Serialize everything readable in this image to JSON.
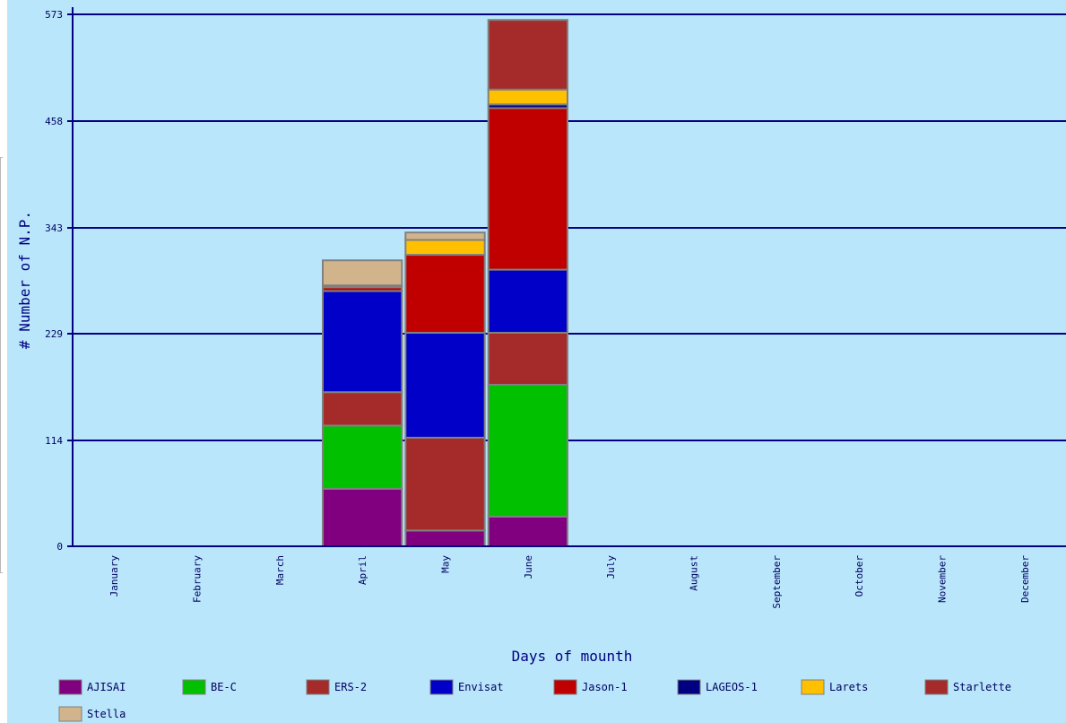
{
  "chart_data": {
    "type": "bar",
    "stacked": true,
    "xlabel": "Days of mounth",
    "ylabel": "# Number of N.P.",
    "ylim": [
      0,
      573
    ],
    "yticks": [
      "0",
      "114",
      "229",
      "343",
      "458",
      "573"
    ],
    "grid": true,
    "legend_position": "bottom",
    "categories": [
      "January",
      "February",
      "March",
      "April",
      "May",
      "June",
      "July",
      "August",
      "September",
      "October",
      "November",
      "December"
    ],
    "series": [
      {
        "name": "AJISAI",
        "color": "#800080",
        "values": [
          0,
          0,
          0,
          62,
          17,
          32,
          0,
          0,
          0,
          0,
          0,
          0
        ]
      },
      {
        "name": "BE-C",
        "color": "#00c000",
        "values": [
          0,
          0,
          0,
          68,
          0,
          142,
          0,
          0,
          0,
          0,
          0,
          0
        ]
      },
      {
        "name": "ERS-2",
        "color": "#a52a2a",
        "values": [
          0,
          0,
          0,
          36,
          100,
          56,
          0,
          0,
          0,
          0,
          0,
          0
        ]
      },
      {
        "name": "Envisat",
        "color": "#0000c8",
        "values": [
          0,
          0,
          0,
          109,
          113,
          68,
          0,
          0,
          0,
          0,
          0,
          0
        ]
      },
      {
        "name": "Jason-1",
        "color": "#c00000",
        "values": [
          0,
          0,
          0,
          4,
          84,
          174,
          0,
          0,
          0,
          0,
          0,
          0
        ]
      },
      {
        "name": "LAGEOS-1",
        "color": "#000080",
        "values": [
          0,
          0,
          0,
          0,
          0,
          4,
          0,
          0,
          0,
          0,
          0,
          0
        ]
      },
      {
        "name": "Larets",
        "color": "#ffc000",
        "values": [
          0,
          0,
          0,
          0,
          16,
          16,
          0,
          0,
          0,
          0,
          0,
          0
        ]
      },
      {
        "name": "Starlette",
        "color": "#a52a2a",
        "values": [
          0,
          0,
          0,
          2,
          0,
          75,
          0,
          0,
          0,
          0,
          0,
          0
        ]
      },
      {
        "name": "Stella",
        "color": "#d2b48c",
        "values": [
          0,
          0,
          0,
          27,
          8,
          0,
          0,
          0,
          0,
          0,
          0,
          0
        ]
      }
    ]
  }
}
